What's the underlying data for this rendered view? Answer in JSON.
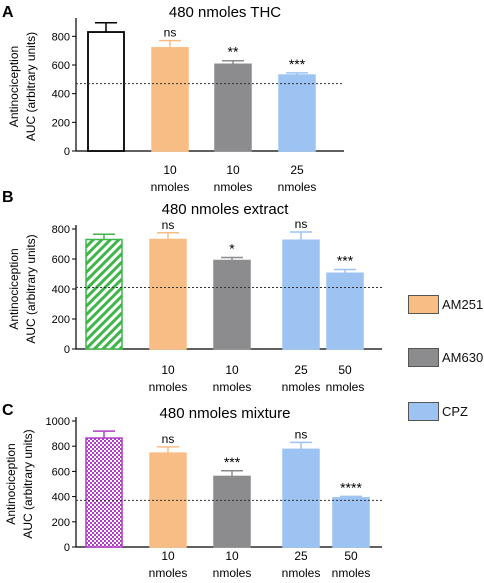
{
  "chart_data": [
    {
      "panel": "A",
      "type": "bar",
      "title": "480 nmoles THC",
      "ylabel": [
        "Antinociception",
        "AUC (arbitrary units)"
      ],
      "ylim": [
        0,
        900
      ],
      "yticks": [
        0,
        200,
        400,
        600,
        800
      ],
      "reference_line": 470,
      "bars": [
        {
          "value": 830,
          "error": 65,
          "color": "#ffffff",
          "fill": "solid",
          "stroke": "#000000",
          "xlabel": [
            "",
            ""
          ],
          "sig": ""
        },
        {
          "value": 720,
          "error": 50,
          "color": "#f7bd84",
          "fill": "solid",
          "stroke": "#f7bd84",
          "xlabel": [
            "10",
            "nmoles"
          ],
          "sig": "ns"
        },
        {
          "value": 605,
          "error": 25,
          "color": "#8c8c8e",
          "fill": "solid",
          "stroke": "#8c8c8e",
          "xlabel": [
            "10",
            "nmoles"
          ],
          "sig": "**"
        },
        {
          "value": 530,
          "error": 15,
          "color": "#9cc3f2",
          "fill": "solid",
          "stroke": "#9cc3f2",
          "xlabel": [
            "25",
            "nmoles"
          ],
          "sig": "***"
        }
      ]
    },
    {
      "panel": "B",
      "type": "bar",
      "title": "480 nmoles extract",
      "ylabel": [
        "Antinociception",
        "AUC (arbitrary units)"
      ],
      "ylim": [
        0,
        800
      ],
      "yticks": [
        0,
        200,
        400,
        600,
        800
      ],
      "reference_line": 410,
      "bars": [
        {
          "value": 730,
          "error": 35,
          "color": "#3fb54a",
          "fill": "hatch",
          "stroke": "#3fb54a",
          "xlabel": [
            "",
            ""
          ],
          "sig": ""
        },
        {
          "value": 730,
          "error": 45,
          "color": "#f7bd84",
          "fill": "solid",
          "stroke": "#f7bd84",
          "xlabel": [
            "10",
            "nmoles"
          ],
          "sig": "ns"
        },
        {
          "value": 590,
          "error": 20,
          "color": "#8c8c8e",
          "fill": "solid",
          "stroke": "#8c8c8e",
          "xlabel": [
            "10",
            "nmoles"
          ],
          "sig": "*"
        },
        {
          "value": 725,
          "error": 55,
          "color": "#9cc3f2",
          "fill": "solid",
          "stroke": "#9cc3f2",
          "xlabel": [
            "25",
            "nmoles"
          ],
          "sig": "ns"
        },
        {
          "value": 505,
          "error": 25,
          "color": "#9cc3f2",
          "fill": "solid",
          "stroke": "#9cc3f2",
          "xlabel": [
            "50",
            "nmoles"
          ],
          "sig": "***"
        }
      ]
    },
    {
      "panel": "C",
      "type": "bar",
      "title": "480 nmoles mixture",
      "ylabel": [
        "Antinociception",
        "AUC (arbitrary units)"
      ],
      "ylim": [
        0,
        1000
      ],
      "yticks": [
        0,
        200,
        400,
        600,
        800,
        1000
      ],
      "reference_line": 370,
      "bars": [
        {
          "value": 865,
          "error": 55,
          "color": "#b23bc9",
          "fill": "checker",
          "stroke": "#b23bc9",
          "xlabel": [
            "",
            ""
          ],
          "sig": ""
        },
        {
          "value": 745,
          "error": 50,
          "color": "#f7bd84",
          "fill": "solid",
          "stroke": "#f7bd84",
          "xlabel": [
            "10",
            "nmoles"
          ],
          "sig": "ns"
        },
        {
          "value": 560,
          "error": 45,
          "color": "#8c8c8e",
          "fill": "solid",
          "stroke": "#8c8c8e",
          "xlabel": [
            "10",
            "nmoles"
          ],
          "sig": "***"
        },
        {
          "value": 775,
          "error": 55,
          "color": "#9cc3f2",
          "fill": "solid",
          "stroke": "#9cc3f2",
          "xlabel": [
            "25",
            "nmoles"
          ],
          "sig": "ns"
        },
        {
          "value": 390,
          "error": 12,
          "color": "#9cc3f2",
          "fill": "solid",
          "stroke": "#9cc3f2",
          "xlabel": [
            "50",
            "nmoles"
          ],
          "sig": "****"
        }
      ]
    }
  ],
  "legend": {
    "items": [
      {
        "label": "AM251",
        "color": "#f7bd84"
      },
      {
        "label": "AM630",
        "color": "#8c8c8e"
      },
      {
        "label": "CPZ",
        "color": "#9cc3f2"
      }
    ]
  }
}
